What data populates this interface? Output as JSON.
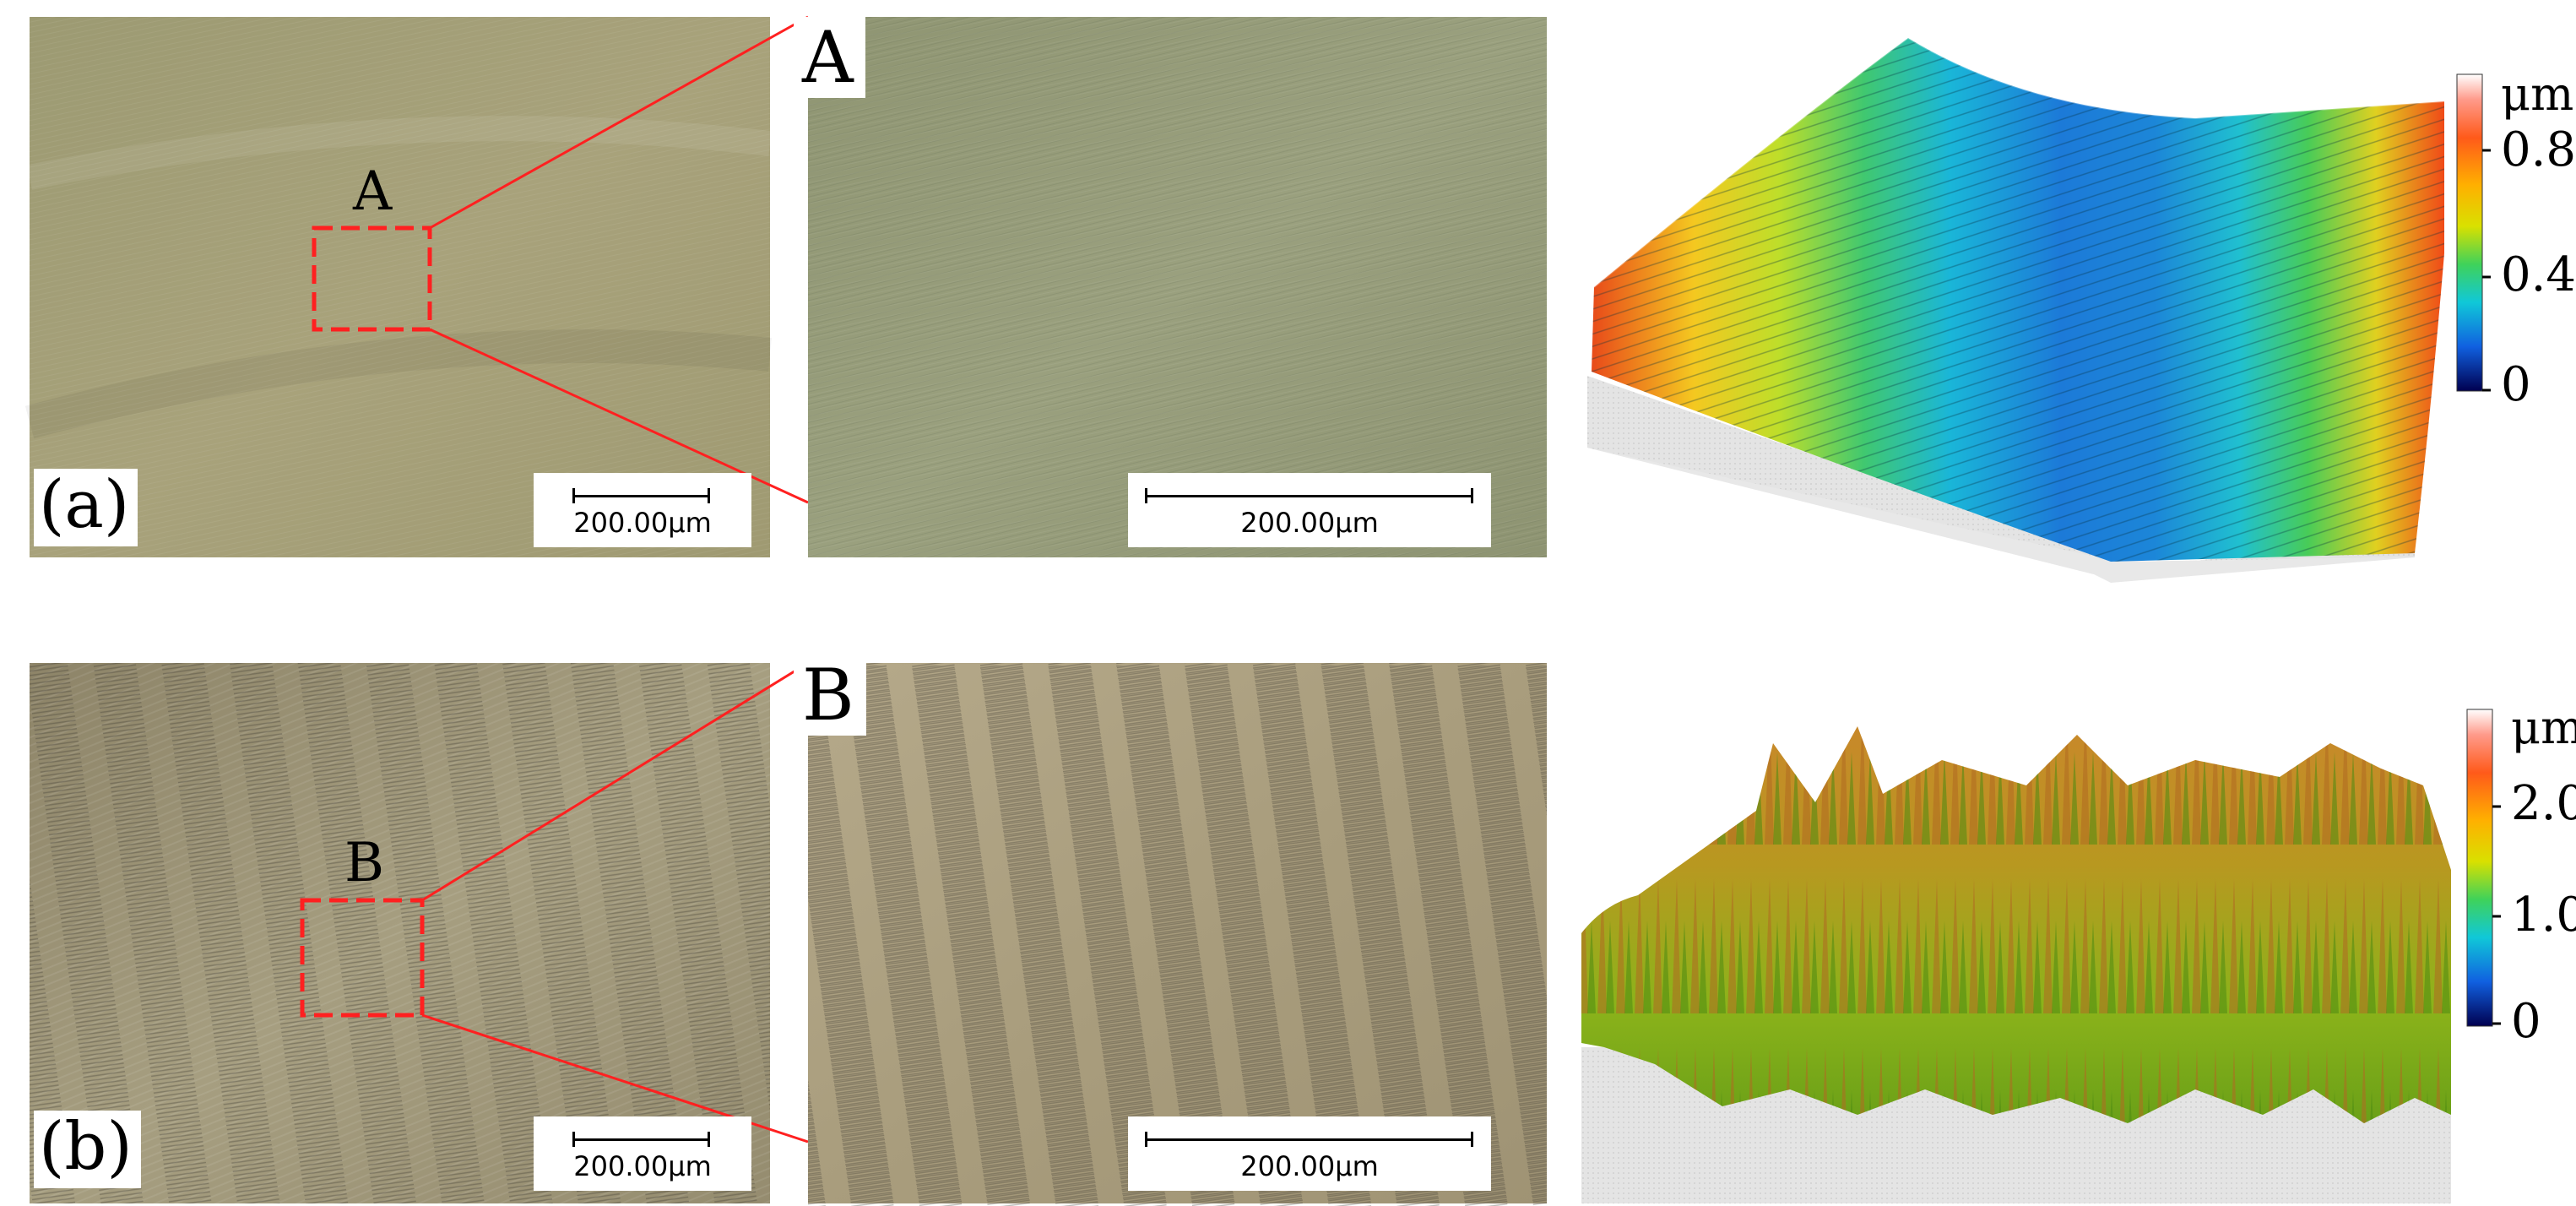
{
  "row_a": {
    "panel_label": "(a)",
    "region_label": "A",
    "zoom_label": "A",
    "scalebar_overview": "200.00μm",
    "scalebar_zoom": "200.00μm",
    "colorbar": {
      "unit": "μm",
      "ticks": [
        "0.8",
        "0.4",
        "0"
      ]
    }
  },
  "row_b": {
    "panel_label": "(b)",
    "region_label": "B",
    "zoom_label": "B",
    "scalebar_overview": "200.00μm",
    "scalebar_zoom": "200.00μm",
    "colorbar": {
      "unit": "μm",
      "ticks": [
        "2.0",
        "1.0",
        "0"
      ]
    }
  },
  "colors": {
    "indicator_red": "#ff2020",
    "surface_a_bg": "#a6a077",
    "surface_b_bg": "#a49c7b"
  }
}
